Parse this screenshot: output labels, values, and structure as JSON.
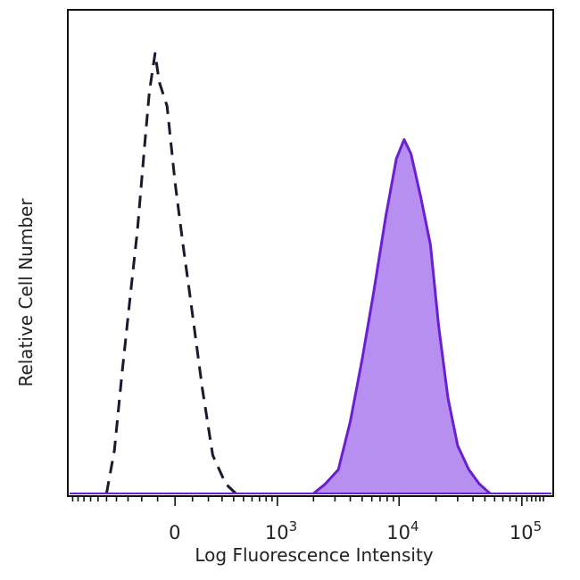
{
  "chart_data": {
    "type": "area",
    "title": "",
    "xlabel": "Log Fluorescence Intensity",
    "ylabel": "Relative Cell Number",
    "x_scale": "biexponential",
    "x_ticks": [
      {
        "value": 0,
        "base": "0",
        "exp": ""
      },
      {
        "value": 1000,
        "base": "10",
        "exp": "3"
      },
      {
        "value": 10000,
        "base": "10",
        "exp": "4"
      },
      {
        "value": 100000,
        "base": "10",
        "exp": "5"
      }
    ],
    "ylim": [
      0,
      100
    ],
    "grid": false,
    "series": [
      {
        "style": "dashed",
        "fill": false,
        "color": "#1a1a2e",
        "points": [
          [
            -500,
            0
          ],
          [
            -420,
            9
          ],
          [
            -350,
            25
          ],
          [
            -280,
            42
          ],
          [
            -230,
            55
          ],
          [
            -180,
            73
          ],
          [
            -150,
            84
          ],
          [
            -115,
            92
          ],
          [
            -90,
            86
          ],
          [
            -45,
            81
          ],
          [
            0,
            65
          ],
          [
            45,
            52
          ],
          [
            90,
            40
          ],
          [
            160,
            22
          ],
          [
            230,
            8
          ],
          [
            330,
            2
          ],
          [
            420,
            0
          ]
        ]
      },
      {
        "style": "solid",
        "fill": true,
        "color": "#6a1fd1",
        "fill_color": "#b68ff0",
        "points": [
          [
            2000,
            0
          ],
          [
            2500,
            2
          ],
          [
            3200,
            5
          ],
          [
            4000,
            15
          ],
          [
            5000,
            28
          ],
          [
            6200,
            42
          ],
          [
            7800,
            58
          ],
          [
            9500,
            70
          ],
          [
            11000,
            74
          ],
          [
            12500,
            71
          ],
          [
            15000,
            62
          ],
          [
            18000,
            52
          ],
          [
            21000,
            35
          ],
          [
            25000,
            20
          ],
          [
            30000,
            10
          ],
          [
            37000,
            5
          ],
          [
            45000,
            2
          ],
          [
            55000,
            0
          ]
        ]
      }
    ]
  }
}
